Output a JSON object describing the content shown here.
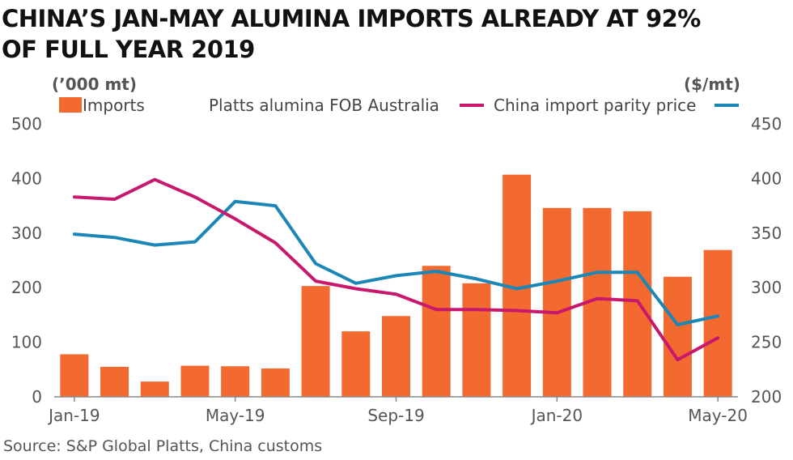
{
  "title": {
    "line1": "CHINA’S JAN-MAY ALUMINA IMPORTS ALREADY AT 92%",
    "line2": "OF FULL YEAR 2019"
  },
  "source": "Source: S&P Global Platts, China customs",
  "colors": {
    "imports": "#f26a30",
    "fob": "#c8186b",
    "parity": "#1b87b6",
    "axis_text": "#555555",
    "grid": "#d0d0d0"
  },
  "chart_data": {
    "type": "bar",
    "title": "CHINA’S JAN-MAY ALUMINA IMPORTS ALREADY AT 92% OF FULL YEAR 2019",
    "left_unit": "(’000 mt)",
    "right_unit": "($/mt)",
    "legend": [
      "Imports",
      "Platts alumina FOB Australia",
      "China import parity price"
    ],
    "x_tick_labels": [
      "Jan-19",
      "May-19",
      "Sep-19",
      "Jan-20",
      "May-20"
    ],
    "x_tick_indices": [
      0,
      4,
      8,
      12,
      16
    ],
    "categories": [
      "Jan-19",
      "Feb-19",
      "Mar-19",
      "Apr-19",
      "May-19",
      "Jun-19",
      "Jul-19",
      "Aug-19",
      "Sep-19",
      "Oct-19",
      "Nov-19",
      "Dec-19",
      "Jan-20",
      "Feb-20",
      "Mar-20",
      "Apr-20",
      "May-20"
    ],
    "y_left": {
      "min": 0,
      "max": 500,
      "ticks": [
        0,
        100,
        200,
        300,
        400,
        500
      ]
    },
    "y_right": {
      "min": 200,
      "max": 450,
      "ticks": [
        200,
        250,
        300,
        350,
        400,
        450
      ]
    },
    "grid": false,
    "legend_position": "top",
    "series": [
      {
        "name": "Imports",
        "type": "bar",
        "axis": "left",
        "values": [
          78,
          55,
          28,
          57,
          56,
          52,
          203,
          120,
          148,
          240,
          208,
          407,
          346,
          346,
          340,
          220,
          269
        ]
      },
      {
        "name": "Platts alumina FOB Australia",
        "type": "line",
        "axis": "right",
        "values": [
          383,
          381,
          399,
          383,
          363,
          341,
          306,
          299,
          294,
          280,
          280,
          279,
          277,
          290,
          288,
          234,
          254
        ]
      },
      {
        "name": "China import parity price",
        "type": "line",
        "axis": "right",
        "values": [
          349,
          346,
          339,
          342,
          379,
          375,
          322,
          304,
          311,
          315,
          308,
          299,
          306,
          314,
          314,
          266,
          274
        ]
      }
    ]
  }
}
